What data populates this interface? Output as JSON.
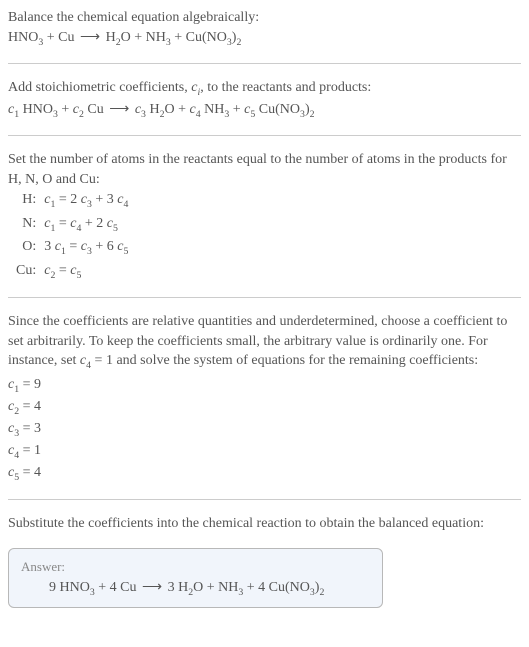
{
  "s1": {
    "intro": "Balance the chemical equation algebraically:",
    "eq": "HNO<sub class=\"sub\">3</sub> + Cu <span class=\"arrow\">⟶</span> H<sub class=\"sub\">2</sub>O + NH<sub class=\"sub\">3</sub> + Cu(NO<sub class=\"sub\">3</sub>)<sub class=\"sub\">2</sub>"
  },
  "s2": {
    "intro": "Add stoichiometric coefficients, <span class=\"italic-var\">c<sub class=\"sub\">i</sub></span>, to the reactants and products:",
    "eq": "<span class=\"italic-var\">c</span><sub class=\"sub\">1</sub> HNO<sub class=\"sub\">3</sub> + <span class=\"italic-var\">c</span><sub class=\"sub\">2</sub> Cu <span class=\"arrow\">⟶</span> <span class=\"italic-var\">c</span><sub class=\"sub\">3</sub> H<sub class=\"sub\">2</sub>O + <span class=\"italic-var\">c</span><sub class=\"sub\">4</sub> NH<sub class=\"sub\">3</sub> + <span class=\"italic-var\">c</span><sub class=\"sub\">5</sub> Cu(NO<sub class=\"sub\">3</sub>)<sub class=\"sub\">2</sub>"
  },
  "s3": {
    "intro": "Set the number of atoms in the reactants equal to the number of atoms in the products for H, N, O and Cu:",
    "rows": [
      {
        "label": "H:",
        "eq": "<span class=\"italic-var\">c</span><sub class=\"sub\">1</sub> = 2 <span class=\"italic-var\">c</span><sub class=\"sub\">3</sub> + 3 <span class=\"italic-var\">c</span><sub class=\"sub\">4</sub>"
      },
      {
        "label": "N:",
        "eq": "<span class=\"italic-var\">c</span><sub class=\"sub\">1</sub> = <span class=\"italic-var\">c</span><sub class=\"sub\">4</sub> + 2 <span class=\"italic-var\">c</span><sub class=\"sub\">5</sub>"
      },
      {
        "label": "O:",
        "eq": "3 <span class=\"italic-var\">c</span><sub class=\"sub\">1</sub> = <span class=\"italic-var\">c</span><sub class=\"sub\">3</sub> + 6 <span class=\"italic-var\">c</span><sub class=\"sub\">5</sub>"
      },
      {
        "label": "Cu:",
        "eq": "<span class=\"italic-var\">c</span><sub class=\"sub\">2</sub> = <span class=\"italic-var\">c</span><sub class=\"sub\">5</sub>"
      }
    ]
  },
  "s4": {
    "intro": "Since the coefficients are relative quantities and underdetermined, choose a coefficient to set arbitrarily. To keep the coefficients small, the arbitrary value is ordinarily one. For instance, set <span class=\"italic-var\">c</span><sub class=\"sub\">4</sub> = 1 and solve the system of equations for the remaining coefficients:",
    "coefs": [
      "<span class=\"italic-var\">c</span><sub class=\"sub\">1</sub> = 9",
      "<span class=\"italic-var\">c</span><sub class=\"sub\">2</sub> = 4",
      "<span class=\"italic-var\">c</span><sub class=\"sub\">3</sub> = 3",
      "<span class=\"italic-var\">c</span><sub class=\"sub\">4</sub> = 1",
      "<span class=\"italic-var\">c</span><sub class=\"sub\">5</sub> = 4"
    ]
  },
  "s5": {
    "intro": "Substitute the coefficients into the chemical reaction to obtain the balanced equation:"
  },
  "answer": {
    "label": "Answer:",
    "eq": "9 HNO<sub class=\"sub\">3</sub> + 4 Cu <span class=\"arrow\">⟶</span> 3 H<sub class=\"sub\">2</sub>O + NH<sub class=\"sub\">3</sub> + 4 Cu(NO<sub class=\"sub\">3</sub>)<sub class=\"sub\">2</sub>"
  }
}
